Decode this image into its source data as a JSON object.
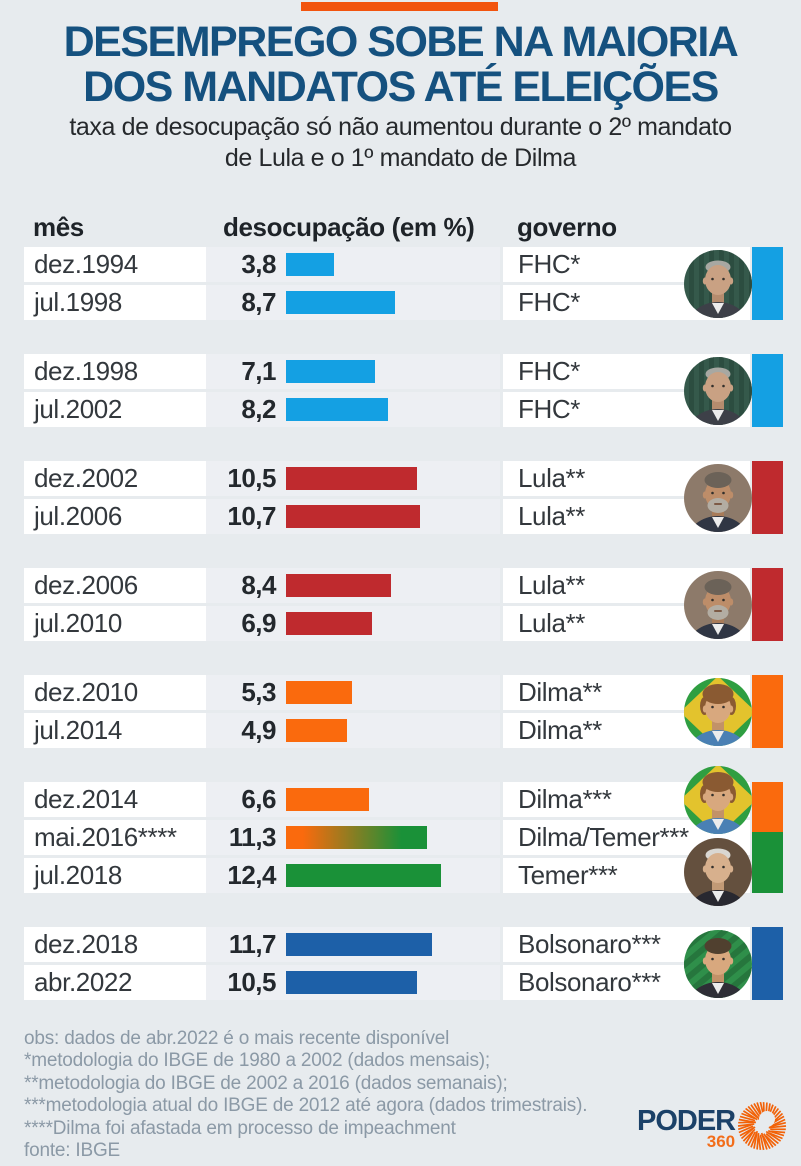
{
  "header": {
    "top_bar_color": "#f2540e",
    "title_line1": "DESEMPREGO SOBE NA MAIORIA",
    "title_line2": "DOS MANDATOS ATÉ ELEIÇÕES",
    "subtitle_line1": "taxa de desocupação só não aumentou durante o 2º mandato",
    "subtitle_line2": "de Lula e o 1º mandato de Dilma",
    "title_color": "#15517f"
  },
  "table": {
    "columns": [
      "mês",
      "desocupação (em %)",
      "governo"
    ]
  },
  "colors": {
    "fhc_blue": "#14a0e3",
    "lula_red": "#bf2a2e",
    "dilma_orange": "#fa6a0d",
    "temer_green": "#1a9138",
    "bolsonaro_blue": "#1d60a8"
  },
  "groups": [
    {
      "photos": [
        "fhc"
      ],
      "accent": [
        "#14a0e3"
      ],
      "rows": [
        {
          "month": "dez.1994",
          "value": "3,8",
          "government": "FHC*",
          "bar_color": "#14a0e3"
        },
        {
          "month": "jul.1998",
          "value": "8,7",
          "government": "FHC*",
          "bar_color": "#14a0e3"
        }
      ]
    },
    {
      "photos": [
        "fhc"
      ],
      "accent": [
        "#14a0e3"
      ],
      "rows": [
        {
          "month": "dez.1998",
          "value": "7,1",
          "government": "FHC*",
          "bar_color": "#14a0e3"
        },
        {
          "month": "jul.2002",
          "value": "8,2",
          "government": "FHC*",
          "bar_color": "#14a0e3"
        }
      ]
    },
    {
      "photos": [
        "lula"
      ],
      "accent": [
        "#bf2a2e"
      ],
      "rows": [
        {
          "month": "dez.2002",
          "value": "10,5",
          "government": "Lula**",
          "bar_color": "#bf2a2e"
        },
        {
          "month": "jul.2006",
          "value": "10,7",
          "government": "Lula**",
          "bar_color": "#bf2a2e"
        }
      ]
    },
    {
      "photos": [
        "lula"
      ],
      "accent": [
        "#bf2a2e"
      ],
      "rows": [
        {
          "month": "dez.2006",
          "value": "8,4",
          "government": "Lula**",
          "bar_color": "#bf2a2e"
        },
        {
          "month": "jul.2010",
          "value": "6,9",
          "government": "Lula**",
          "bar_color": "#bf2a2e"
        }
      ]
    },
    {
      "photos": [
        "dilma"
      ],
      "accent": [
        "#fa6a0d"
      ],
      "rows": [
        {
          "month": "dez.2010",
          "value": "5,3",
          "government": "Dilma**",
          "bar_color": "#fa6a0d"
        },
        {
          "month": "jul.2014",
          "value": "4,9",
          "government": "Dilma**",
          "bar_color": "#fa6a0d"
        }
      ]
    },
    {
      "photos": [
        "dilma",
        "temer"
      ],
      "accent": [
        "#fa6a0d",
        "#1a9138"
      ],
      "rows": [
        {
          "month": "dez.2014",
          "value": "6,6",
          "government": "Dilma***",
          "bar_color": "#fa6a0d"
        },
        {
          "month": "mai.2016****",
          "value": "11,3",
          "government": "Dilma/Temer***",
          "bar_gradient": [
            "#fa6a0d",
            "#1a9138"
          ]
        },
        {
          "month": "jul.2018",
          "value": "12,4",
          "government": "Temer***",
          "bar_color": "#1a9138"
        }
      ]
    },
    {
      "photos": [
        "bolsonaro"
      ],
      "accent": [
        "#1d60a8"
      ],
      "rows": [
        {
          "month": "dez.2018",
          "value": "11,7",
          "government": "Bolsonaro***",
          "bar_color": "#1d60a8"
        },
        {
          "month": "abr.2022",
          "value": "10,5",
          "government": "Bolsonaro***",
          "bar_color": "#1d60a8"
        }
      ]
    }
  ],
  "footnotes": [
    "obs: dados de abr.2022 é o mais recente disponível",
    "*metodologia do IBGE de 1980 a 2002 (dados mensais);",
    "**metodologia do IBGE de 2002 a 2016 (dados semanais);",
    "***metodologia atual do IBGE de 2012 até agora (dados trimestrais).",
    "****Dilma foi afastada em processo de impeachment",
    "fonte: IBGE"
  ],
  "logo": {
    "text": "PODER",
    "number": "360"
  },
  "chart_data": {
    "type": "bar",
    "orientation": "horizontal",
    "title": "DESEMPREGO SOBE NA MAIORIA DOS MANDATOS ATÉ ELEIÇÕES",
    "subtitle": "taxa de desocupação só não aumentou durante o 2º mandato de Lula e o 1º mandato de Dilma",
    "unit": "%",
    "xlim": [
      0,
      13
    ],
    "source": "IBGE",
    "points": [
      {
        "month": "dez.1994",
        "value": 3.8,
        "government": "FHC*"
      },
      {
        "month": "jul.1998",
        "value": 8.7,
        "government": "FHC*"
      },
      {
        "month": "dez.1998",
        "value": 7.1,
        "government": "FHC*"
      },
      {
        "month": "jul.2002",
        "value": 8.2,
        "government": "FHC*"
      },
      {
        "month": "dez.2002",
        "value": 10.5,
        "government": "Lula**"
      },
      {
        "month": "jul.2006",
        "value": 10.7,
        "government": "Lula**"
      },
      {
        "month": "dez.2006",
        "value": 8.4,
        "government": "Lula**"
      },
      {
        "month": "jul.2010",
        "value": 6.9,
        "government": "Lula**"
      },
      {
        "month": "dez.2010",
        "value": 5.3,
        "government": "Dilma**"
      },
      {
        "month": "jul.2014",
        "value": 4.9,
        "government": "Dilma**"
      },
      {
        "month": "dez.2014",
        "value": 6.6,
        "government": "Dilma***"
      },
      {
        "month": "mai.2016****",
        "value": 11.3,
        "government": "Dilma/Temer***"
      },
      {
        "month": "jul.2018",
        "value": 12.4,
        "government": "Temer***"
      },
      {
        "month": "dez.2018",
        "value": 11.7,
        "government": "Bolsonaro***"
      },
      {
        "month": "abr.2022",
        "value": 10.5,
        "government": "Bolsonaro***"
      }
    ]
  }
}
